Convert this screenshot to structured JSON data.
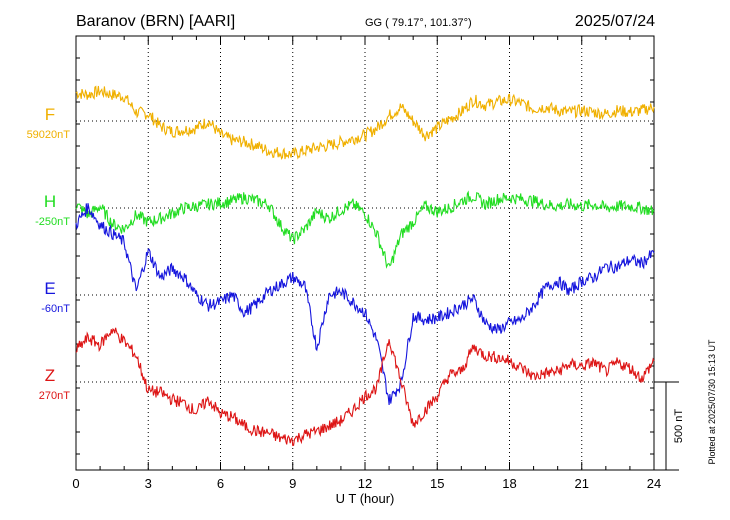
{
  "header": {
    "station": "Baranov (BRN)  [AARI]",
    "coords": "GG ( 79.17°, 101.37°)",
    "date": "2025/07/24",
    "plotted": "Plotted at 2025/07/30 15:13 UT"
  },
  "chart_data": {
    "type": "line",
    "xlabel": "U T (hour)",
    "xlim": [
      0,
      24
    ],
    "x_ticks": [
      0,
      3,
      6,
      9,
      12,
      15,
      18,
      21,
      24
    ],
    "scale_label": "500 nT",
    "scale_nT": 500,
    "series": [
      {
        "name": "F",
        "baseline_label": "59020nT",
        "baseline_nT": 59020,
        "color": "#f0b000",
        "x": [
          0,
          0.5,
          1,
          1.5,
          2,
          2.5,
          3,
          3.5,
          4,
          4.5,
          5,
          5.5,
          6,
          6.5,
          7,
          7.5,
          8,
          8.5,
          9,
          9.5,
          10,
          10.5,
          11,
          11.5,
          12,
          12.5,
          13,
          13.5,
          14,
          14.5,
          15,
          15.5,
          16,
          16.5,
          17,
          17.5,
          18,
          18.5,
          19,
          19.5,
          20,
          20.5,
          21,
          21.5,
          22,
          22.5,
          23,
          23.5,
          24
        ],
        "values": [
          160,
          150,
          170,
          150,
          140,
          50,
          40,
          -30,
          -60,
          -50,
          -40,
          0,
          -80,
          -110,
          -120,
          -140,
          -170,
          -180,
          -190,
          -170,
          -150,
          -140,
          -120,
          -100,
          -80,
          -40,
          30,
          80,
          0,
          -80,
          -40,
          10,
          50,
          120,
          90,
          110,
          120,
          100,
          70,
          80,
          60,
          50,
          60,
          50,
          40,
          60,
          50,
          60,
          80
        ]
      },
      {
        "name": "H",
        "baseline_label": "-250nT",
        "baseline_nT": -250,
        "color": "#22dd22",
        "x": [
          0,
          0.5,
          1,
          1.5,
          2,
          2.5,
          3,
          3.5,
          4,
          4.5,
          5,
          5.5,
          6,
          6.5,
          7,
          7.5,
          8,
          8.5,
          9,
          9.5,
          10,
          10.5,
          11,
          11.5,
          12,
          12.5,
          13,
          13.5,
          14,
          14.5,
          15,
          15.5,
          16,
          16.5,
          17,
          17.5,
          18,
          18.5,
          19,
          19.5,
          20,
          20.5,
          21,
          21.5,
          22,
          22.5,
          23,
          23.5,
          24
        ],
        "values": [
          20,
          -40,
          10,
          -90,
          -120,
          -40,
          -80,
          -60,
          -30,
          0,
          10,
          20,
          30,
          40,
          60,
          40,
          20,
          -100,
          -180,
          -120,
          -20,
          -60,
          -10,
          20,
          -30,
          -150,
          -350,
          -150,
          -80,
          10,
          -20,
          0,
          40,
          70,
          20,
          50,
          60,
          50,
          40,
          20,
          10,
          20,
          10,
          20,
          0,
          10,
          10,
          0,
          -20
        ]
      },
      {
        "name": "E",
        "baseline_label": "-60nT",
        "baseline_nT": -60,
        "color": "#1515dd",
        "x": [
          0,
          0.5,
          1,
          1.5,
          2,
          2.5,
          3,
          3.5,
          4,
          4.5,
          5,
          5.5,
          6,
          6.5,
          7,
          7.5,
          8,
          8.5,
          9,
          9.5,
          10,
          10.5,
          11,
          11.5,
          12,
          12.5,
          13,
          13.5,
          14,
          14.5,
          15,
          15.5,
          16,
          16.5,
          17,
          17.5,
          18,
          18.5,
          19,
          19.5,
          20,
          20.5,
          21,
          21.5,
          22,
          22.5,
          23,
          23.5,
          24
        ],
        "values": [
          400,
          500,
          400,
          350,
          300,
          20,
          250,
          100,
          150,
          100,
          0,
          -60,
          -40,
          0,
          -100,
          -50,
          20,
          60,
          100,
          50,
          -300,
          0,
          20,
          -40,
          -100,
          -260,
          -600,
          -500,
          -120,
          -140,
          -130,
          -100,
          -60,
          -20,
          -160,
          -200,
          -160,
          -140,
          -60,
          40,
          80,
          20,
          80,
          100,
          160,
          160,
          200,
          180,
          240
        ]
      },
      {
        "name": "Z",
        "baseline_label": "270nT",
        "baseline_nT": 270,
        "color": "#dd1515",
        "x": [
          0,
          0.5,
          1,
          1.5,
          2,
          2.5,
          3,
          3.5,
          4,
          4.5,
          5,
          5.5,
          6,
          6.5,
          7,
          7.5,
          8,
          8.5,
          9,
          9.5,
          10,
          10.5,
          11,
          11.5,
          12,
          12.5,
          13,
          13.5,
          14,
          14.5,
          15,
          15.5,
          16,
          16.5,
          17,
          17.5,
          18,
          18.5,
          19,
          19.5,
          20,
          20.5,
          21,
          21.5,
          22,
          22.5,
          23,
          23.5,
          24
        ],
        "values": [
          180,
          250,
          210,
          300,
          230,
          150,
          -50,
          -60,
          -100,
          -120,
          -170,
          -100,
          -180,
          -200,
          -250,
          -280,
          -290,
          -320,
          -330,
          -300,
          -280,
          -250,
          -220,
          -160,
          -80,
          -30,
          250,
          0,
          -240,
          -160,
          -80,
          40,
          60,
          200,
          150,
          140,
          120,
          80,
          30,
          50,
          60,
          100,
          90,
          110,
          60,
          110,
          80,
          20,
          120
        ]
      }
    ]
  }
}
